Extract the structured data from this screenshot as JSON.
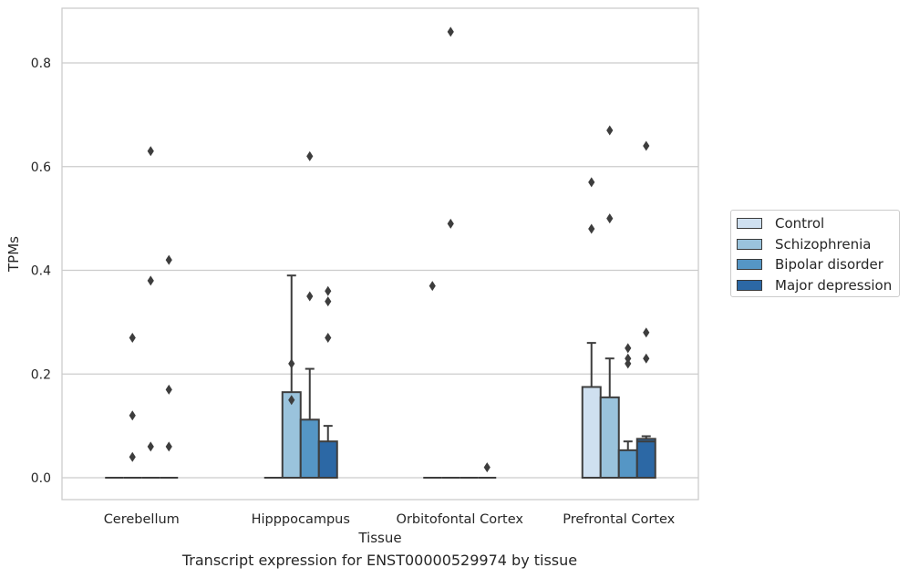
{
  "caption": "Transcript expression for ENST00000529974 by tissue",
  "chart_data": {
    "type": "box",
    "xlabel": "Tissue",
    "ylabel": "TPMs",
    "ylim": [
      -0.04,
      0.905
    ],
    "yticks": [
      0.0,
      0.2,
      0.4,
      0.6,
      0.8
    ],
    "ytick_labels": [
      "0.0",
      "0.2",
      "0.4",
      "0.6",
      "0.8"
    ],
    "grid": "horizontal",
    "legend_position": "right",
    "categories": [
      "Cerebellum",
      "Hipppocampus",
      "Orbitofontal Cortex",
      "Prefrontal Cortex"
    ],
    "series": [
      {
        "name": "Control",
        "color": "#cfe0f0",
        "boxes": [
          {
            "q1": 0,
            "median": 0,
            "q3": 0,
            "whislo": 0,
            "whishi": 0,
            "fliers": []
          },
          {
            "q1": 0,
            "median": 0,
            "q3": 0,
            "whislo": 0,
            "whishi": 0,
            "fliers": []
          },
          {
            "q1": 0,
            "median": 0,
            "q3": 0,
            "whislo": 0,
            "whishi": 0,
            "fliers": [
              0.37
            ]
          },
          {
            "q1": 0,
            "median": 0,
            "q3": 0.175,
            "whislo": 0,
            "whishi": 0.26,
            "fliers": [
              0.48,
              0.57
            ]
          }
        ]
      },
      {
        "name": "Schizophrenia",
        "color": "#9ac3dc",
        "boxes": [
          {
            "q1": 0,
            "median": 0,
            "q3": 0,
            "whislo": 0,
            "whishi": 0,
            "fliers": [
              0.04,
              0.12,
              0.27
            ]
          },
          {
            "q1": 0,
            "median": 0,
            "q3": 0.165,
            "whislo": 0,
            "whishi": 0.39,
            "fliers": [
              0.15,
              0.22
            ]
          },
          {
            "q1": 0,
            "median": 0,
            "q3": 0,
            "whislo": 0,
            "whishi": 0,
            "fliers": [
              0.49,
              0.86
            ]
          },
          {
            "q1": 0,
            "median": 0,
            "q3": 0.155,
            "whislo": 0,
            "whishi": 0.23,
            "fliers": [
              0.5,
              0.67
            ]
          }
        ]
      },
      {
        "name": "Bipolar disorder",
        "color": "#5596c5",
        "boxes": [
          {
            "q1": 0,
            "median": 0,
            "q3": 0,
            "whislo": 0,
            "whishi": 0,
            "fliers": [
              0.06,
              0.38,
              0.63
            ]
          },
          {
            "q1": 0,
            "median": 0,
            "q3": 0.112,
            "whislo": 0,
            "whishi": 0.21,
            "fliers": [
              0.35,
              0.62
            ]
          },
          {
            "q1": 0,
            "median": 0,
            "q3": 0,
            "whislo": 0,
            "whishi": 0,
            "fliers": []
          },
          {
            "q1": 0,
            "median": 0,
            "q3": 0.053,
            "whislo": 0,
            "whishi": 0.07,
            "fliers": [
              0.22,
              0.23,
              0.25
            ]
          }
        ]
      },
      {
        "name": "Major depression",
        "color": "#2c68a5",
        "boxes": [
          {
            "q1": 0,
            "median": 0,
            "q3": 0,
            "whislo": 0,
            "whishi": 0,
            "fliers": [
              0.06,
              0.17,
              0.42
            ]
          },
          {
            "q1": 0,
            "median": 0,
            "q3": 0.07,
            "whislo": 0,
            "whishi": 0.1,
            "fliers": [
              0.27,
              0.34,
              0.36
            ]
          },
          {
            "q1": 0,
            "median": 0,
            "q3": 0,
            "whislo": 0,
            "whishi": 0,
            "fliers": [
              0.02
            ]
          },
          {
            "q1": 0,
            "median": 0.07,
            "q3": 0.075,
            "whislo": 0,
            "whishi": 0.08,
            "fliers": [
              0.23,
              0.28,
              0.64
            ]
          }
        ]
      }
    ]
  }
}
